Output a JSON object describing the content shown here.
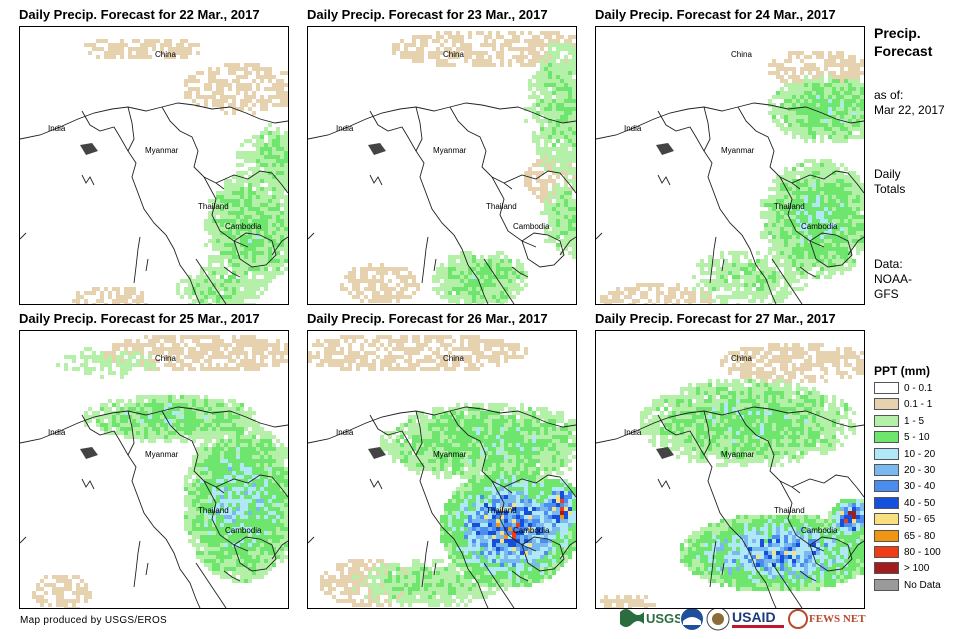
{
  "panels": [
    {
      "title": "Daily Precip. Forecast for 22 Mar., 2017"
    },
    {
      "title": "Daily Precip. Forecast for 23 Mar., 2017"
    },
    {
      "title": "Daily Precip. Forecast for 24 Mar., 2017"
    },
    {
      "title": "Daily Precip. Forecast for 25 Mar., 2017"
    },
    {
      "title": "Daily Precip. Forecast for 26 Mar., 2017"
    },
    {
      "title": "Daily Precip. Forecast for 27 Mar., 2017"
    }
  ],
  "map_labels": {
    "china": "China",
    "india": "India",
    "myanmar": "Myanmar",
    "thailand": "Thailand",
    "cambodia": "Cambodia"
  },
  "side": {
    "title_line1": "Precip.",
    "title_line2": "Forecast",
    "asof_line1": "as of:",
    "asof_line2": "Mar 22, 2017",
    "daily_line1": "Daily",
    "daily_line2": "Totals",
    "data_line1": "Data:",
    "data_line2": "NOAA-",
    "data_line3": "GFS"
  },
  "legend": {
    "title": "PPT (mm)",
    "items": [
      {
        "label": "0 - 0.1",
        "color": "#ffffff"
      },
      {
        "label": "0.1 - 1",
        "color": "#e6d2ae"
      },
      {
        "label": "1 - 5",
        "color": "#b4f0a8"
      },
      {
        "label": "5 - 10",
        "color": "#6ee66e"
      },
      {
        "label": "10 - 20",
        "color": "#b0e8f8"
      },
      {
        "label": "20 - 30",
        "color": "#7ab8f0"
      },
      {
        "label": "30 - 40",
        "color": "#4a8cf0"
      },
      {
        "label": "40 - 50",
        "color": "#1450dc"
      },
      {
        "label": "50 - 65",
        "color": "#f8e080"
      },
      {
        "label": "65 - 80",
        "color": "#f09614"
      },
      {
        "label": "80 - 100",
        "color": "#f03c14"
      },
      {
        "label": "> 100",
        "color": "#a01e1e"
      },
      {
        "label": "No Data",
        "color": "#9a9a9a"
      }
    ]
  },
  "credit": "Map produced by USGS/EROS",
  "logos": {
    "usgs": "USGS",
    "usaid": "USAID",
    "fewsnet": "FEWS NET"
  }
}
